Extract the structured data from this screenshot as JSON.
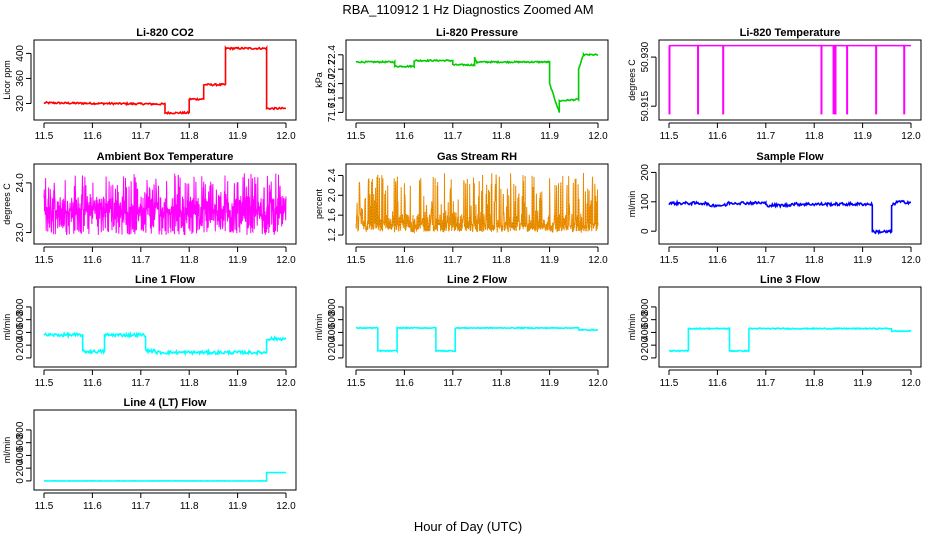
{
  "figure": {
    "title": "RBA_110912  1 Hz Diagnostics Zoomed AM",
    "xlabel": "Hour of Day (UTC)"
  },
  "chart_data": [
    {
      "type": "line",
      "title": "Li-820 CO2",
      "ylabel": "Licor ppm",
      "color": "#ff0000",
      "xlim": [
        11.5,
        12.0
      ],
      "xticks": [
        "11.5",
        "11.6",
        "11.7",
        "11.8",
        "11.9",
        "12.0"
      ],
      "ylim": [
        300,
        415
      ],
      "yticks": [
        "320",
        "360",
        "400"
      ],
      "ytick_values": [
        320,
        360,
        400
      ],
      "series": [
        {
          "x": [
            11.5,
            11.75,
            11.75,
            11.8,
            11.8,
            11.83,
            11.83,
            11.875,
            11.875,
            11.96,
            11.96,
            12.0
          ],
          "y": [
            321,
            319,
            305,
            305,
            327,
            327,
            350,
            350,
            408,
            408,
            312,
            312
          ],
          "noise": 1.5
        }
      ]
    },
    {
      "type": "line",
      "title": "Li-820 Pressure",
      "ylabel": "kPa",
      "color": "#00cc00",
      "xlim": [
        11.5,
        12.0
      ],
      "xticks": [
        "11.5",
        "11.6",
        "11.7",
        "11.8",
        "11.9",
        "12.0"
      ],
      "ylim": [
        71.55,
        72.55
      ],
      "yticks": [
        "71.6",
        "71.8",
        "72.0",
        "72.2",
        "72.4"
      ],
      "ytick_values": [
        71.6,
        71.8,
        72.0,
        72.2,
        72.4
      ],
      "series": [
        {
          "x": [
            11.5,
            11.58,
            11.58,
            11.62,
            11.62,
            11.7,
            11.7,
            11.745,
            11.745,
            11.75,
            11.75,
            11.9,
            11.9,
            11.92,
            11.92,
            11.96,
            11.96,
            11.97,
            11.97,
            12.0
          ],
          "y": [
            72.3,
            72.3,
            72.24,
            72.24,
            72.32,
            72.32,
            72.26,
            72.26,
            72.36,
            72.28,
            72.3,
            72.3,
            72.0,
            71.6,
            71.76,
            71.78,
            72.2,
            72.4,
            72.4,
            72.4
          ],
          "noise": 0.01
        }
      ]
    },
    {
      "type": "line",
      "title": "Li-820 Temperature",
      "ylabel": "degrees C",
      "color": "#ff00ff",
      "xlim": [
        11.5,
        12.0
      ],
      "xticks": [
        "11.5",
        "11.6",
        "11.7",
        "11.8",
        "11.9",
        "12.0"
      ],
      "ylim": [
        50.912,
        50.934
      ],
      "yticks": [
        "50.915",
        "50.930"
      ],
      "ytick_values": [
        50.915,
        50.93
      ],
      "baseline": 50.9335,
      "dips": [
        11.501,
        11.56,
        11.612,
        11.815,
        11.84,
        11.844,
        11.868,
        11.928,
        11.986
      ],
      "dip_value": 50.9125
    },
    {
      "type": "line",
      "title": "Ambient Box Temperature",
      "ylabel": "degrees C",
      "color": "#ff00ff",
      "xlim": [
        11.5,
        12.0
      ],
      "xticks": [
        "11.5",
        "11.6",
        "11.7",
        "11.8",
        "11.9",
        "12.0"
      ],
      "ylim": [
        22.85,
        24.3
      ],
      "yticks": [
        "23.0",
        "24.0"
      ],
      "ytick_values": [
        23.0,
        24.0
      ],
      "noise_band": {
        "low": 22.95,
        "high": 24.2,
        "center": 23.55
      }
    },
    {
      "type": "line",
      "title": "Gas Stream RH",
      "ylabel": "percent",
      "color": "#ff8c00",
      "secondary_color": "#9a8c00",
      "xlim": [
        11.5,
        12.0
      ],
      "xticks": [
        "11.5",
        "11.6",
        "11.7",
        "11.8",
        "11.9",
        "12.0"
      ],
      "ylim": [
        1.1,
        2.55
      ],
      "yticks": [
        "1.2",
        "1.6",
        "2.0",
        "2.4"
      ],
      "ytick_values": [
        1.2,
        1.6,
        2.0,
        2.4
      ],
      "noise_band": {
        "low": 1.25,
        "high": 2.45,
        "center": 1.45
      }
    },
    {
      "type": "line",
      "title": "Sample Flow",
      "ylabel": "ml/min",
      "color": "#0000ff",
      "xlim": [
        11.5,
        12.0
      ],
      "xticks": [
        "11.5",
        "11.6",
        "11.7",
        "11.8",
        "11.9",
        "12.0"
      ],
      "ylim": [
        -30,
        215
      ],
      "yticks": [
        "0",
        "100",
        "200"
      ],
      "ytick_values": [
        0,
        100,
        200
      ],
      "series": [
        {
          "x": [
            11.5,
            11.58,
            11.58,
            11.62,
            11.62,
            11.7,
            11.7,
            11.75,
            11.75,
            11.92,
            11.92,
            11.96,
            11.96,
            11.97,
            11.97,
            12.0
          ],
          "y": [
            95,
            95,
            88,
            88,
            96,
            96,
            88,
            88,
            92,
            92,
            -2,
            -2,
            85,
            100,
            100,
            98
          ],
          "noise": 5
        }
      ]
    },
    {
      "type": "line",
      "title": "Line 1 Flow",
      "ylabel": "ml/min",
      "color": "#00ffff",
      "xlim": [
        11.5,
        12.0
      ],
      "xticks": [
        "11.5",
        "11.6",
        "11.7",
        "11.8",
        "11.9",
        "12.0"
      ],
      "ylim": [
        -80,
        1050
      ],
      "yticks": [
        "0",
        "200",
        "400",
        "600",
        "800"
      ],
      "ytick_values": [
        0,
        200,
        400,
        600,
        800
      ],
      "series": [
        {
          "x": [
            11.5,
            11.58,
            11.58,
            11.625,
            11.625,
            11.71,
            11.71,
            11.73,
            11.73,
            11.96,
            11.96,
            12.0
          ],
          "y": [
            360,
            360,
            100,
            100,
            360,
            360,
            110,
            110,
            85,
            85,
            300,
            300
          ],
          "noise": 25
        }
      ]
    },
    {
      "type": "line",
      "title": "Line 2 Flow",
      "ylabel": "ml/min",
      "color": "#00ffff",
      "xlim": [
        11.5,
        12.0
      ],
      "xticks": [
        "11.5",
        "11.6",
        "11.7",
        "11.8",
        "11.9",
        "12.0"
      ],
      "ylim": [
        -80,
        1050
      ],
      "yticks": [
        "0",
        "200",
        "400",
        "600",
        "800"
      ],
      "ytick_values": [
        0,
        200,
        400,
        600,
        800
      ],
      "series": [
        {
          "x": [
            11.5,
            11.545,
            11.545,
            11.585,
            11.585,
            11.665,
            11.665,
            11.705,
            11.705,
            11.96,
            11.96,
            12.0
          ],
          "y": [
            470,
            470,
            110,
            110,
            470,
            470,
            110,
            110,
            470,
            470,
            440,
            440
          ],
          "noise": 8
        }
      ]
    },
    {
      "type": "line",
      "title": "Line 3 Flow",
      "ylabel": "ml/min",
      "color": "#00ffff",
      "xlim": [
        11.5,
        12.0
      ],
      "xticks": [
        "11.5",
        "11.6",
        "11.7",
        "11.8",
        "11.9",
        "12.0"
      ],
      "ylim": [
        -80,
        1050
      ],
      "yticks": [
        "0",
        "200",
        "400",
        "600",
        "800"
      ],
      "ytick_values": [
        0,
        200,
        400,
        600,
        800
      ],
      "series": [
        {
          "x": [
            11.5,
            11.54,
            11.54,
            11.625,
            11.625,
            11.665,
            11.665,
            11.96,
            11.96,
            12.0
          ],
          "y": [
            110,
            110,
            460,
            460,
            110,
            110,
            460,
            460,
            420,
            420
          ],
          "noise": 8
        }
      ]
    },
    {
      "type": "line",
      "title": "Line 4 (LT) Flow",
      "ylabel": "ml/min",
      "color": "#00ffff",
      "xlim": [
        11.5,
        12.0
      ],
      "xticks": [
        "11.5",
        "11.6",
        "11.7",
        "11.8",
        "11.9",
        "12.0"
      ],
      "ylim": [
        -80,
        1050
      ],
      "yticks": [
        "0",
        "200",
        "400",
        "600",
        "800"
      ],
      "ytick_values": [
        0,
        200,
        400,
        600,
        800
      ],
      "series": [
        {
          "x": [
            11.5,
            11.96,
            11.96,
            12.0
          ],
          "y": [
            0,
            0,
            130,
            130
          ],
          "noise": 2
        }
      ]
    }
  ]
}
